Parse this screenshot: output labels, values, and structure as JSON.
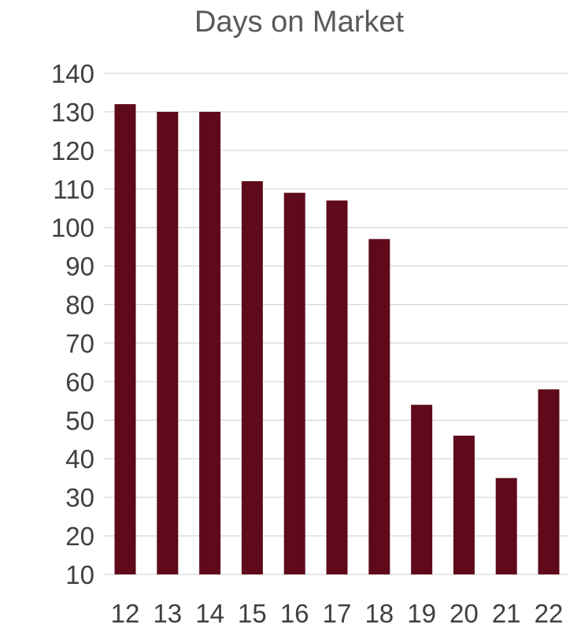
{
  "chart_data": {
    "type": "bar",
    "title": "Days on Market",
    "xlabel": "",
    "ylabel": "",
    "categories": [
      "12",
      "13",
      "14",
      "15",
      "16",
      "17",
      "18",
      "19",
      "20",
      "21",
      "22"
    ],
    "series": [
      {
        "values": [
          132,
          130,
          130,
          112,
          109,
          107,
          97,
          54,
          46,
          35,
          58
        ]
      }
    ],
    "ylim": [
      10,
      140
    ],
    "yticks": [
      140,
      130,
      120,
      110,
      100,
      90,
      80,
      70,
      60,
      50,
      40,
      30,
      20,
      10
    ],
    "grid": true,
    "legend": "none",
    "colors": {
      "bar": "#5e0a1a",
      "gridline": "#d9d9d9",
      "title": "#595959",
      "tick_label": "#404040"
    }
  }
}
